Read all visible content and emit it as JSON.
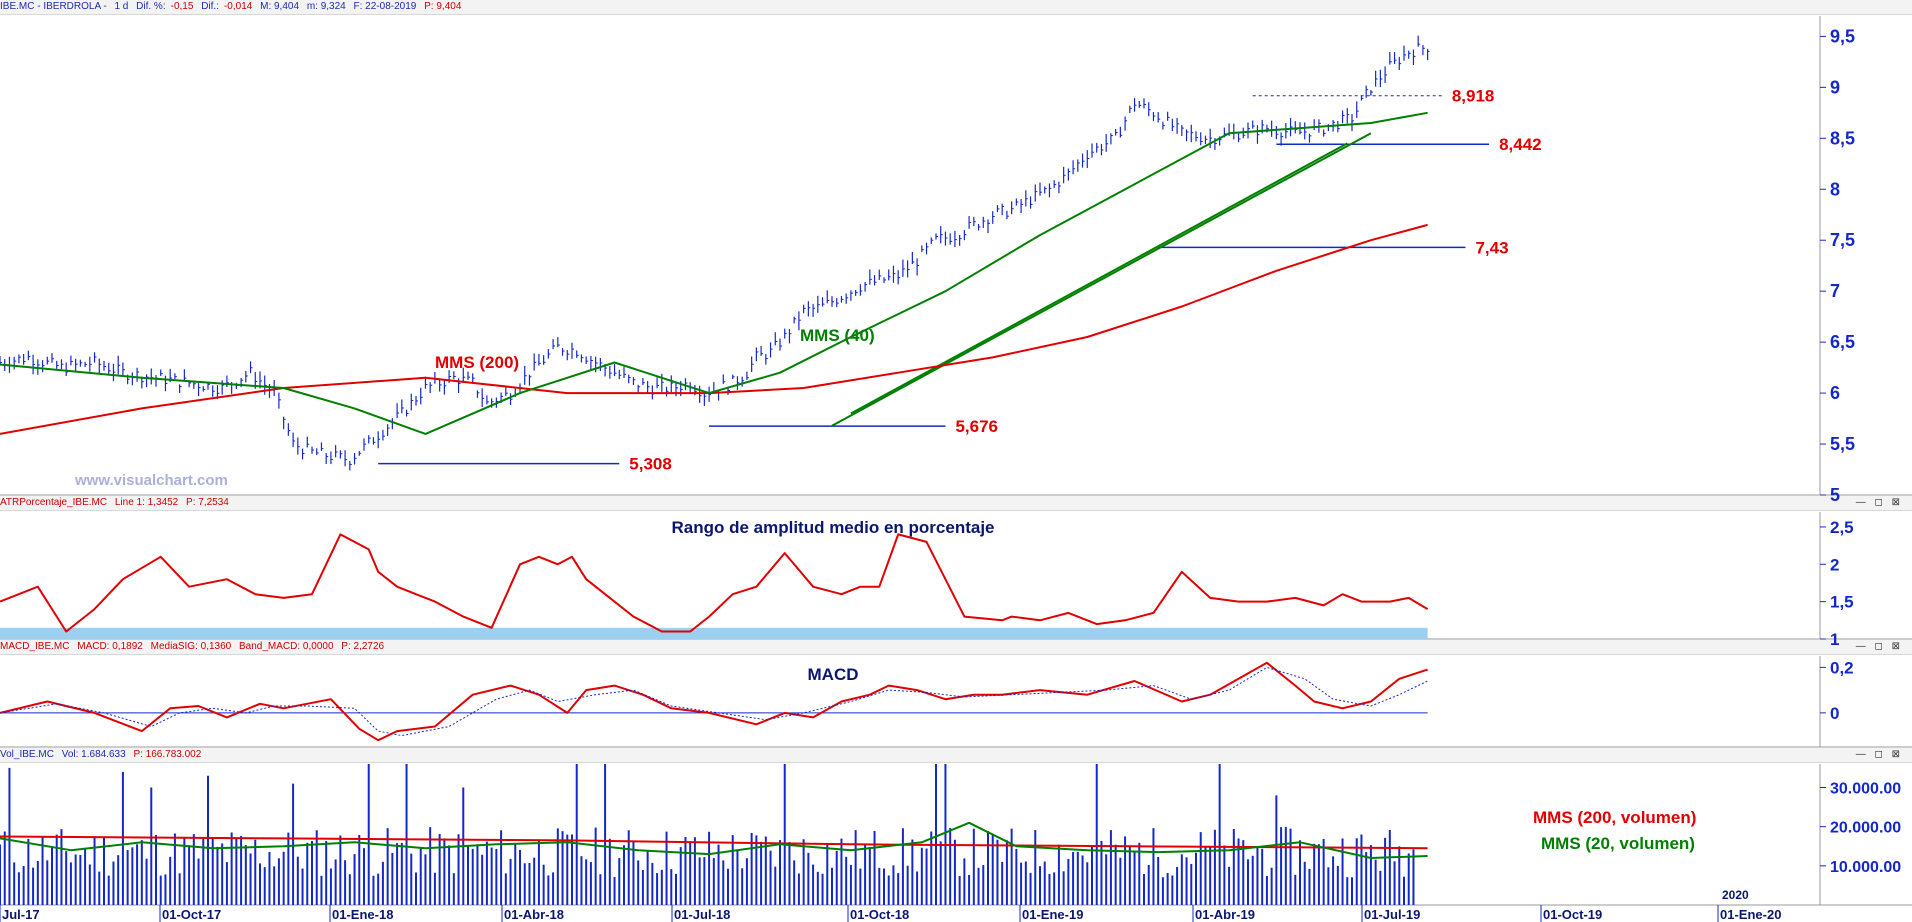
{
  "colors": {
    "price": "#1428c8",
    "mms200": "#e00000",
    "mms40": "#008000",
    "support": "#1428c8",
    "axis": "#1428c8",
    "label_red": "#e00000",
    "atr_band": "#9ccff0"
  },
  "main_header": {
    "symbol": "IBE.MC - IBERDROLA -",
    "period": "1 d",
    "dif_pct_label": "Dif. %:",
    "dif_pct_value": "-0,15",
    "dif_label": "Dif.:",
    "dif_value": "-0,014",
    "max": "M: 9,404",
    "min": "m: 9,324",
    "date": "F: 22-08-2019",
    "last": "P: 9,404"
  },
  "watermark": "www.visualchart.com",
  "x_axis": {
    "ticks": [
      "Jul-17",
      "01-Oct-17",
      "01-Ene-18",
      "01-Abr-18",
      "01-Jul-18",
      "01-Oct-18",
      "01-Ene-19",
      "01-Abr-19",
      "01-Jul-19",
      "01-Oct-19",
      "01-Ene-20"
    ],
    "year_marker": "2020"
  },
  "chart_data": [
    {
      "type": "line",
      "panel": "price",
      "y_ticks": [
        "9,5",
        "9",
        "8,5",
        "8",
        "7,5",
        "7",
        "6,5",
        "6",
        "5,5",
        "5"
      ],
      "ylim": [
        5,
        9.7
      ],
      "series": [
        {
          "values_x": [
            0,
            6,
            13,
            20,
            26,
            33,
            40,
            47,
            53,
            58,
            62,
            66,
            70,
            74,
            79,
            85,
            90,
            96,
            100,
            103,
            108,
            112,
            118,
            122,
            126,
            130,
            134,
            138,
            142,
            146,
            149,
            152,
            155,
            158,
            160,
            163,
            166,
            170,
            174,
            178,
            182,
            186,
            190,
            194,
            198,
            202,
            206,
            210,
            214,
            218,
            222,
            226,
            230,
            236,
            240,
            244,
            250,
            256,
            262,
            268,
            274,
            280,
            286,
            290,
            294,
            298,
            302
          ],
          "values": [
            6.3,
            6.35,
            6.25,
            6.3,
            6.2,
            6.15,
            6.1,
            6.05,
            6.2,
            6.0,
            5.5,
            5.42,
            5.38,
            5.35,
            5.55,
            5.8,
            6.05,
            6.15,
            6.1,
            5.9,
            6.0,
            6.2,
            6.45,
            6.42,
            6.3,
            6.2,
            6.1,
            6.05,
            6.05,
            6.1,
            6.0,
            6.05,
            6.1,
            6.2,
            6.35,
            6.4,
            6.55,
            6.8,
            6.85,
            6.95,
            7.05,
            7.1,
            7.15,
            7.3,
            7.5,
            7.55,
            7.65,
            7.75,
            7.8,
            7.9,
            8.0,
            8.15,
            8.35,
            8.5,
            8.85,
            8.75,
            8.55,
            8.5,
            8.55,
            8.6,
            8.55,
            8.6,
            8.7,
            9.0,
            9.2,
            9.35,
            9.4
          ]
        },
        {
          "name": "MMS (40)",
          "values_x": [
            0,
            30,
            60,
            75,
            90,
            110,
            130,
            150,
            165,
            180,
            200,
            220,
            240,
            260,
            275,
            290,
            302
          ],
          "values": [
            6.28,
            6.15,
            6.05,
            5.85,
            5.6,
            6.0,
            6.3,
            6.0,
            6.2,
            6.55,
            7.0,
            7.55,
            8.05,
            8.55,
            8.6,
            8.65,
            8.75
          ]
        },
        {
          "name": "MMS (200)",
          "values_x": [
            0,
            30,
            60,
            90,
            120,
            150,
            170,
            190,
            210,
            230,
            250,
            270,
            290,
            302
          ],
          "values": [
            5.6,
            5.85,
            6.05,
            6.15,
            6.0,
            6.0,
            6.05,
            6.2,
            6.35,
            6.55,
            6.85,
            7.2,
            7.5,
            7.65
          ]
        }
      ],
      "x_domain": [
        0,
        385
      ],
      "support_levels": [
        {
          "label": "5,308",
          "value": 5.308,
          "from": 80,
          "to": 131
        },
        {
          "label": "5,676",
          "value": 5.676,
          "from": 150,
          "to": 200
        },
        {
          "label": "7,43",
          "value": 7.43,
          "from": 245,
          "to": 310
        },
        {
          "label": "8,442",
          "value": 8.442,
          "from": 270,
          "to": 315
        },
        {
          "label": "8,918",
          "value": 8.918,
          "from": 265,
          "to": 305,
          "dashed": true
        }
      ],
      "trendlines": [
        {
          "x1": 176,
          "y1": 5.68,
          "x2": 290,
          "y2": 8.55
        },
        {
          "x1": 180,
          "y1": 5.8,
          "x2": 285,
          "y2": 8.45
        }
      ],
      "annotations": [
        {
          "text": "MMS (200)"
        },
        {
          "text": "MMS (40)"
        }
      ]
    },
    {
      "type": "line",
      "panel": "atr",
      "header_label": "ATRPorcentaje_IBE.MC",
      "header_line": "Line 1: 1,3452",
      "header_p": "P: 7,2534",
      "title": "Rango de amplitud medio en porcentaje",
      "y_ticks": [
        "2,5",
        "2",
        "1,5",
        "1"
      ],
      "ylim": [
        1,
        2.7
      ],
      "band": [
        1.0,
        1.15
      ],
      "values_x": [
        0,
        8,
        14,
        20,
        26,
        34,
        40,
        48,
        54,
        60,
        66,
        72,
        78,
        80,
        84,
        88,
        92,
        98,
        104,
        110,
        114,
        118,
        121,
        124,
        128,
        134,
        140,
        146,
        150,
        155,
        160,
        166,
        172,
        178,
        182,
        186,
        190,
        196,
        204,
        212,
        214,
        220,
        226,
        232,
        238,
        244,
        250,
        256,
        262,
        268,
        274,
        280,
        284,
        288,
        294,
        298,
        302
      ],
      "values": [
        1.5,
        1.7,
        1.1,
        1.4,
        1.8,
        2.1,
        1.7,
        1.8,
        1.6,
        1.55,
        1.6,
        2.4,
        2.2,
        1.9,
        1.7,
        1.6,
        1.5,
        1.3,
        1.15,
        2.0,
        2.1,
        2.0,
        2.1,
        1.8,
        1.6,
        1.3,
        1.1,
        1.1,
        1.3,
        1.6,
        1.7,
        2.15,
        1.7,
        1.6,
        1.7,
        1.7,
        2.4,
        2.3,
        1.3,
        1.25,
        1.3,
        1.25,
        1.35,
        1.2,
        1.25,
        1.35,
        1.9,
        1.55,
        1.5,
        1.5,
        1.55,
        1.45,
        1.6,
        1.5,
        1.5,
        1.55,
        1.4
      ]
    },
    {
      "type": "line",
      "panel": "macd",
      "header_label": "MACD_IBE.MC",
      "header_macd": "MACD: 0,1892",
      "header_sig": "MediaSIG: 0,1360",
      "header_band": "Band_MACD: 0,0000",
      "header_p": "P: 2,2726",
      "title": "MACD",
      "y_ticks": [
        "0,2",
        "0"
      ],
      "ylim": [
        -0.15,
        0.25
      ],
      "series": [
        {
          "name": "MACD",
          "values_x": [
            0,
            10,
            20,
            30,
            36,
            42,
            48,
            55,
            60,
            70,
            76,
            80,
            84,
            92,
            100,
            108,
            114,
            120,
            124,
            130,
            136,
            142,
            150,
            160,
            166,
            172,
            178,
            184,
            188,
            194,
            200,
            206,
            212,
            220,
            230,
            240,
            250,
            256,
            262,
            268,
            274,
            278,
            284,
            290,
            296,
            302
          ],
          "values": [
            0.0,
            0.05,
            0.0,
            -0.08,
            0.02,
            0.03,
            -0.02,
            0.04,
            0.02,
            0.06,
            -0.07,
            -0.12,
            -0.08,
            -0.06,
            0.08,
            0.12,
            0.08,
            0.0,
            0.1,
            0.12,
            0.08,
            0.02,
            0.0,
            -0.05,
            0.0,
            -0.02,
            0.05,
            0.08,
            0.12,
            0.1,
            0.06,
            0.08,
            0.08,
            0.1,
            0.08,
            0.14,
            0.05,
            0.08,
            0.15,
            0.22,
            0.12,
            0.05,
            0.02,
            0.05,
            0.15,
            0.19
          ]
        },
        {
          "name": "MediaSIG",
          "values_x": [
            0,
            12,
            22,
            32,
            38,
            45,
            52,
            58,
            65,
            75,
            80,
            85,
            95,
            105,
            112,
            118,
            126,
            134,
            142,
            152,
            162,
            170,
            180,
            188,
            196,
            204,
            214,
            224,
            234,
            244,
            252,
            260,
            268,
            276,
            282,
            290,
            296,
            302
          ],
          "values": [
            0.0,
            0.04,
            0.0,
            -0.06,
            0.0,
            0.02,
            0.0,
            0.03,
            0.03,
            0.02,
            -0.08,
            -0.1,
            -0.06,
            0.06,
            0.1,
            0.05,
            0.08,
            0.1,
            0.03,
            0.0,
            -0.03,
            0.0,
            0.05,
            0.1,
            0.09,
            0.07,
            0.08,
            0.09,
            0.1,
            0.12,
            0.06,
            0.1,
            0.2,
            0.15,
            0.06,
            0.03,
            0.08,
            0.14
          ]
        }
      ]
    },
    {
      "type": "bar",
      "panel": "volume",
      "header_label": "Vol_IBE.MC",
      "header_vol": "Vol: 1.684.633",
      "header_p": "P: 166.783.002",
      "y_ticks": [
        "30.000.00",
        "20.000.00",
        "10.000.00"
      ],
      "ylim": [
        0,
        36000000
      ],
      "bar_count": 300,
      "spikes": [
        {
          "x": 2,
          "value": 35000000
        },
        {
          "x": 26,
          "value": 34000000
        },
        {
          "x": 32,
          "value": 30000000
        },
        {
          "x": 44,
          "value": 33000000
        },
        {
          "x": 62,
          "value": 31000000
        },
        {
          "x": 78,
          "value": 36000000
        },
        {
          "x": 86,
          "value": 36000000
        },
        {
          "x": 98,
          "value": 30000000
        },
        {
          "x": 122,
          "value": 36000000
        },
        {
          "x": 128,
          "value": 36000000
        },
        {
          "x": 166,
          "value": 36000000
        },
        {
          "x": 198,
          "value": 36000000
        },
        {
          "x": 200,
          "value": 36000000
        },
        {
          "x": 232,
          "value": 36000000
        },
        {
          "x": 258,
          "value": 36000000
        },
        {
          "x": 270,
          "value": 28000000
        }
      ],
      "series": [
        {
          "name": "MMS (200, volumen)",
          "values_x": [
            0,
            60,
            120,
            180,
            240,
            302
          ],
          "values": [
            17500000,
            17000000,
            16500000,
            15500000,
            15000000,
            14500000
          ]
        },
        {
          "name": "MMS (20, volumen)",
          "values_x": [
            0,
            15,
            30,
            45,
            60,
            75,
            90,
            105,
            120,
            135,
            150,
            165,
            180,
            195,
            205,
            215,
            230,
            245,
            260,
            275,
            290,
            302
          ],
          "values": [
            17000000,
            14000000,
            16000000,
            14500000,
            15000000,
            16000000,
            14500000,
            15500000,
            16000000,
            14000000,
            13000000,
            15500000,
            14000000,
            16000000,
            21000000,
            15000000,
            14000000,
            13500000,
            14000000,
            16000000,
            12000000,
            12500000
          ]
        }
      ],
      "legend": [
        "MMS (200, volumen)",
        "MMS (20, volumen)"
      ]
    }
  ]
}
